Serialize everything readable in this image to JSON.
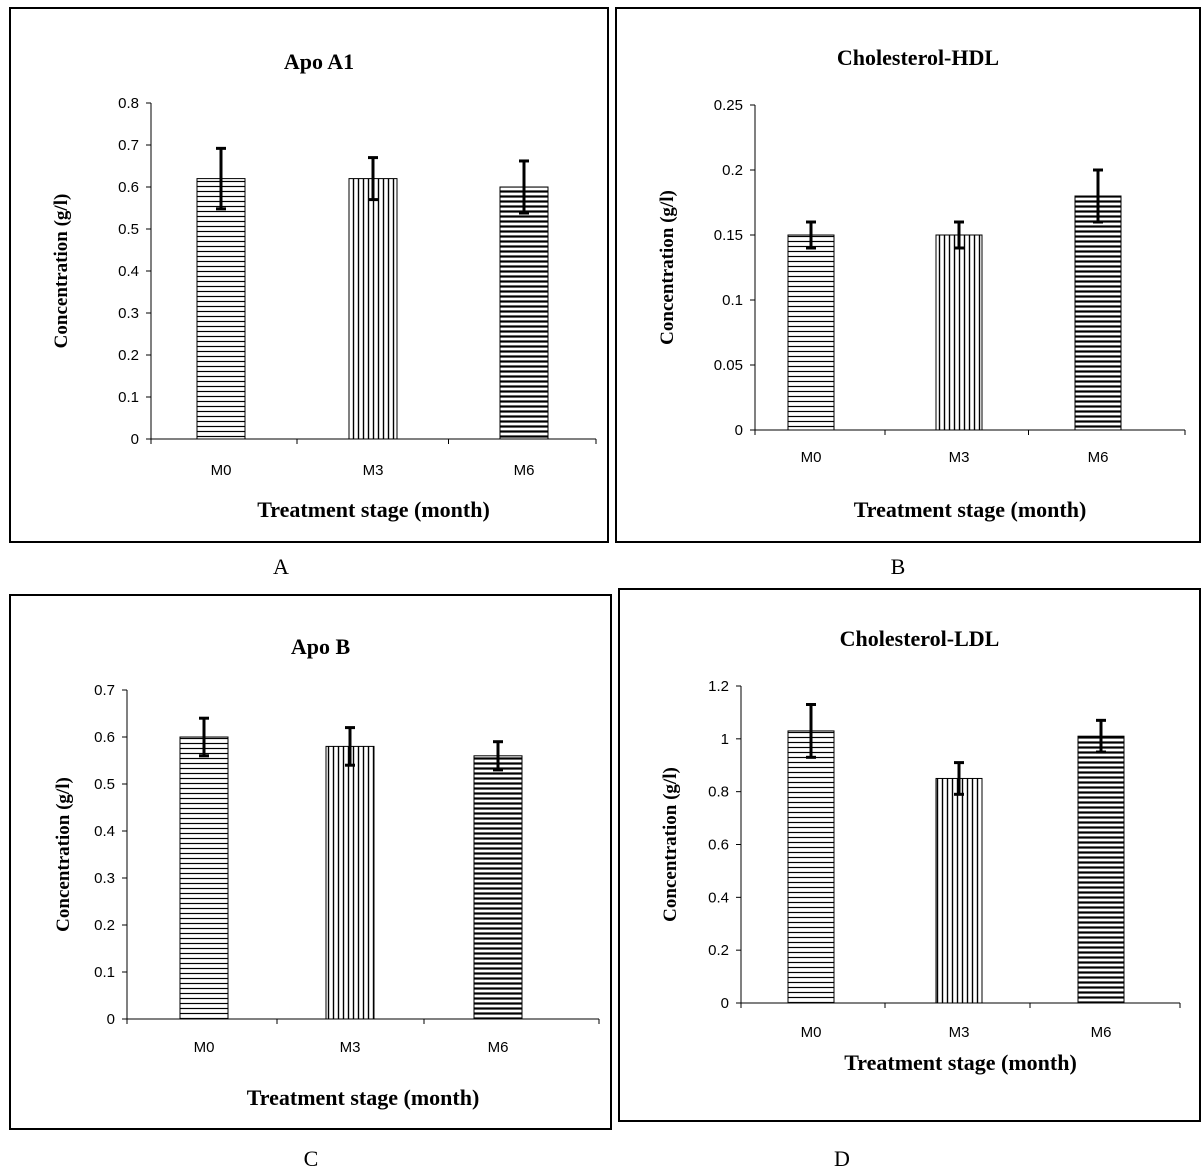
{
  "chart_data": [
    {
      "type": "bar",
      "panel_label": "A",
      "title": "Apo A1",
      "xlabel": "Treatment stage (month)",
      "ylabel": "Concentration (g/l)",
      "categories": [
        "M0",
        "M3",
        "M6"
      ],
      "values": [
        0.62,
        0.62,
        0.6
      ],
      "errors": [
        0.072,
        0.05,
        0.062
      ],
      "ylim": [
        0,
        0.8
      ],
      "yticks": [
        "0",
        "0.1",
        "0.2",
        "0.3",
        "0.4",
        "0.5",
        "0.6",
        "0.7",
        "0.8"
      ],
      "patterns": [
        "horizontal",
        "vertical",
        "horizontal-bold"
      ],
      "grid": false
    },
    {
      "type": "bar",
      "panel_label": "B",
      "title": "Cholesterol-HDL",
      "xlabel": "Treatment stage (month)",
      "ylabel": "Concentration (g/l)",
      "categories": [
        "M0",
        "M3",
        "M6"
      ],
      "values": [
        0.15,
        0.15,
        0.18
      ],
      "errors": [
        0.01,
        0.01,
        0.02
      ],
      "ylim": [
        0,
        0.25
      ],
      "yticks": [
        "0",
        "0.05",
        "0.1",
        "0.15",
        "0.2",
        "0.25"
      ],
      "patterns": [
        "horizontal",
        "vertical",
        "horizontal-bold"
      ],
      "grid": false
    },
    {
      "type": "bar",
      "panel_label": "C",
      "title": "Apo B",
      "xlabel": "Treatment stage (month)",
      "ylabel": "Concentration (g/l)",
      "categories": [
        "M0",
        "M3",
        "M6"
      ],
      "values": [
        0.6,
        0.58,
        0.56
      ],
      "errors": [
        0.04,
        0.04,
        0.03
      ],
      "ylim": [
        0,
        0.7
      ],
      "yticks": [
        "0",
        "0.1",
        "0.2",
        "0.3",
        "0.4",
        "0.5",
        "0.6",
        "0.7"
      ],
      "patterns": [
        "horizontal",
        "vertical",
        "horizontal-bold"
      ],
      "grid": false
    },
    {
      "type": "bar",
      "panel_label": "D",
      "title": "Cholesterol-LDL",
      "xlabel": "Treatment stage (month)",
      "ylabel": "Concentration (g/l)",
      "categories": [
        "M0",
        "M3",
        "M6"
      ],
      "values": [
        1.03,
        0.85,
        1.01
      ],
      "errors": [
        0.1,
        0.06,
        0.06
      ],
      "ylim": [
        0,
        1.2
      ],
      "yticks": [
        "0",
        "0.2",
        "0.4",
        "0.6",
        "0.8",
        "1",
        "1.2"
      ],
      "patterns": [
        "horizontal",
        "vertical",
        "horizontal-bold"
      ],
      "grid": false
    }
  ]
}
